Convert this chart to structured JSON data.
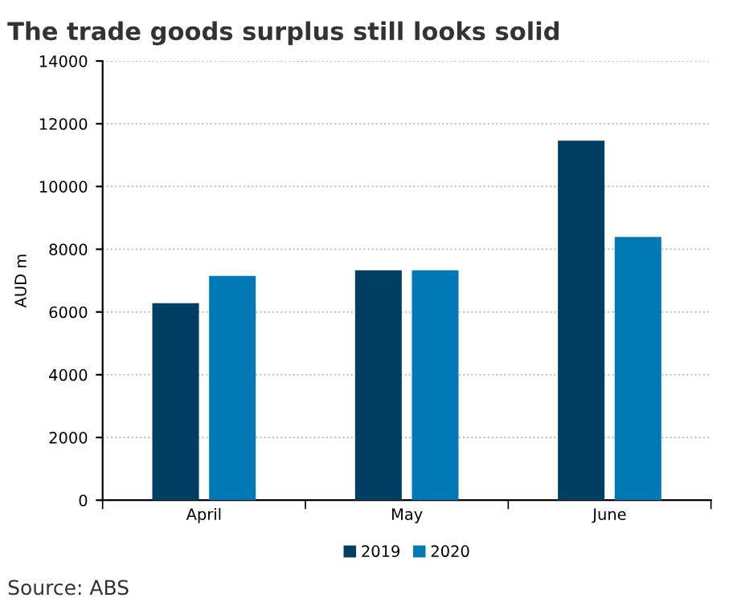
{
  "chart_data": {
    "type": "bar",
    "title": "The trade goods surplus still looks solid",
    "ylabel": "AUD m",
    "categories": [
      "April",
      "May",
      "June"
    ],
    "series": [
      {
        "name": "2019",
        "color": "#003f63",
        "values": [
          6280,
          7330,
          11460
        ]
      },
      {
        "name": "2020",
        "color": "#0079b6",
        "values": [
          7150,
          7330,
          8390
        ]
      }
    ],
    "ylim": [
      0,
      14000
    ],
    "yticks": [
      0,
      2000,
      4000,
      6000,
      8000,
      10000,
      12000,
      14000
    ],
    "grid": "y",
    "legend": "bottom",
    "annotations": [
      "Source: ABS"
    ]
  }
}
